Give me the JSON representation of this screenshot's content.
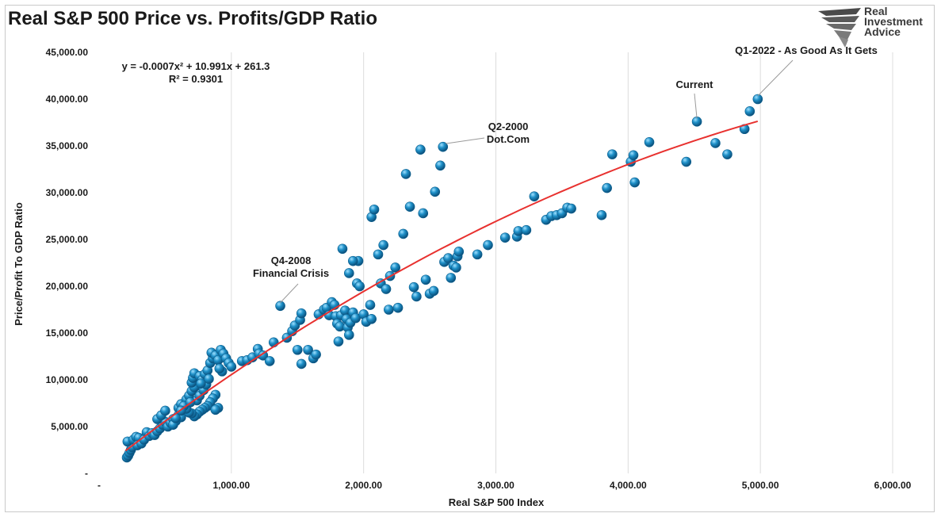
{
  "chart_data": {
    "type": "scatter",
    "title": "Real S&P 500 Price vs. Profits/GDP Ratio",
    "xlabel": "Real S&P 500 Index",
    "ylabel": "Price/Profit To GDP Ratio",
    "xlim": [
      0,
      6000
    ],
    "ylim": [
      0,
      45000
    ],
    "x_ticks": [
      "-",
      "1,000.00",
      "2,000.00",
      "3,000.00",
      "4,000.00",
      "5,000.00",
      "6,000.00"
    ],
    "y_ticks": [
      "-",
      "5,000.00",
      "10,000.00",
      "15,000.00",
      "20,000.00",
      "25,000.00",
      "30,000.00",
      "35,000.00",
      "40,000.00",
      "45,000.00"
    ],
    "grid": "vertical",
    "point_color": "#1e90c8",
    "trend_color": "#e8312f",
    "trendline": {
      "equation": "y = -0.0007x² + 10.991x + 261.3",
      "r2": "R² = 0.9301",
      "coefficients": [
        -0.0007,
        10.991,
        261.3
      ],
      "x_range": [
        200,
        4980
      ]
    },
    "annotations": [
      {
        "lines": [
          "Q4-2008",
          "Financial Crisis"
        ],
        "x": 1370,
        "y": 17900
      },
      {
        "lines": [
          "Q2-2000",
          "Dot.Com"
        ],
        "x": 2620,
        "y": 34900
      },
      {
        "lines": [
          "Current"
        ],
        "x": 4520,
        "y": 37600
      },
      {
        "lines": [
          "Q1-2022 - As Good As It Gets"
        ],
        "x": 4980,
        "y": 40000
      }
    ],
    "points": [
      [
        210,
        1700
      ],
      [
        220,
        1900
      ],
      [
        230,
        2200
      ],
      [
        240,
        2500
      ],
      [
        250,
        2800
      ],
      [
        215,
        3400
      ],
      [
        260,
        3600
      ],
      [
        280,
        3900
      ],
      [
        300,
        3800
      ],
      [
        290,
        3000
      ],
      [
        320,
        3200
      ],
      [
        340,
        3600
      ],
      [
        360,
        4400
      ],
      [
        380,
        4000
      ],
      [
        400,
        4300
      ],
      [
        420,
        4100
      ],
      [
        440,
        4500
      ],
      [
        460,
        4800
      ],
      [
        480,
        5200
      ],
      [
        500,
        5500
      ],
      [
        440,
        5800
      ],
      [
        470,
        6200
      ],
      [
        500,
        6700
      ],
      [
        520,
        5000
      ],
      [
        540,
        5400
      ],
      [
        560,
        5800
      ],
      [
        580,
        5600
      ],
      [
        600,
        6200
      ],
      [
        620,
        6000
      ],
      [
        640,
        6800
      ],
      [
        600,
        7000
      ],
      [
        620,
        7400
      ],
      [
        660,
        7900
      ],
      [
        680,
        8300
      ],
      [
        700,
        8800
      ],
      [
        720,
        9200
      ],
      [
        700,
        9700
      ],
      [
        710,
        10200
      ],
      [
        720,
        10700
      ],
      [
        760,
        10400
      ],
      [
        780,
        10000
      ],
      [
        800,
        10600
      ],
      [
        820,
        11000
      ],
      [
        840,
        11800
      ],
      [
        860,
        12300
      ],
      [
        850,
        12900
      ],
      [
        880,
        12600
      ],
      [
        900,
        12100
      ],
      [
        920,
        13200
      ],
      [
        940,
        12800
      ],
      [
        960,
        12300
      ],
      [
        980,
        11800
      ],
      [
        1000,
        11400
      ],
      [
        930,
        10900
      ],
      [
        910,
        11200
      ],
      [
        880,
        8400
      ],
      [
        860,
        8000
      ],
      [
        840,
        7600
      ],
      [
        820,
        7200
      ],
      [
        800,
        7000
      ],
      [
        780,
        6800
      ],
      [
        760,
        6600
      ],
      [
        740,
        6300
      ],
      [
        720,
        6100
      ],
      [
        700,
        6400
      ],
      [
        680,
        6500
      ],
      [
        900,
        7000
      ],
      [
        880,
        6800
      ],
      [
        660,
        6900
      ],
      [
        640,
        7200
      ],
      [
        560,
        5200
      ],
      [
        580,
        5900
      ],
      [
        620,
        6700
      ],
      [
        740,
        7800
      ],
      [
        760,
        8300
      ],
      [
        790,
        8900
      ],
      [
        810,
        9500
      ],
      [
        830,
        10100
      ],
      [
        770,
        9600
      ],
      [
        690,
        7600
      ],
      [
        1080,
        12000
      ],
      [
        1120,
        12100
      ],
      [
        1160,
        12400
      ],
      [
        1200,
        13300
      ],
      [
        1210,
        12800
      ],
      [
        1240,
        12600
      ],
      [
        1290,
        12000
      ],
      [
        1320,
        14000
      ],
      [
        1370,
        17900
      ],
      [
        1420,
        14500
      ],
      [
        1460,
        15200
      ],
      [
        1480,
        15800
      ],
      [
        1520,
        16400
      ],
      [
        1530,
        17100
      ],
      [
        1500,
        13200
      ],
      [
        1530,
        11700
      ],
      [
        1580,
        13200
      ],
      [
        1620,
        12300
      ],
      [
        1640,
        12700
      ],
      [
        1660,
        17000
      ],
      [
        1700,
        17500
      ],
      [
        1720,
        17700
      ],
      [
        1740,
        16900
      ],
      [
        1760,
        18300
      ],
      [
        1780,
        18000
      ],
      [
        1790,
        16800
      ],
      [
        1800,
        16000
      ],
      [
        1820,
        15700
      ],
      [
        1810,
        14100
      ],
      [
        1830,
        16900
      ],
      [
        1860,
        17400
      ],
      [
        1870,
        16500
      ],
      [
        1880,
        15600
      ],
      [
        1890,
        14800
      ],
      [
        1900,
        16100
      ],
      [
        1920,
        17200
      ],
      [
        1940,
        16600
      ],
      [
        1950,
        20300
      ],
      [
        1960,
        22700
      ],
      [
        1970,
        20000
      ],
      [
        1840,
        24000
      ],
      [
        1890,
        21400
      ],
      [
        1920,
        22700
      ],
      [
        2000,
        17000
      ],
      [
        2020,
        16200
      ],
      [
        2050,
        18000
      ],
      [
        2060,
        16500
      ],
      [
        2060,
        27400
      ],
      [
        2080,
        28200
      ],
      [
        2110,
        23400
      ],
      [
        2130,
        20300
      ],
      [
        2150,
        24400
      ],
      [
        2170,
        19700
      ],
      [
        2190,
        17500
      ],
      [
        2200,
        21100
      ],
      [
        2240,
        22000
      ],
      [
        2260,
        17700
      ],
      [
        2300,
        25600
      ],
      [
        2320,
        32000
      ],
      [
        2350,
        28500
      ],
      [
        2380,
        19900
      ],
      [
        2400,
        18900
      ],
      [
        2430,
        34600
      ],
      [
        2450,
        27800
      ],
      [
        2470,
        20700
      ],
      [
        2500,
        19200
      ],
      [
        2530,
        19500
      ],
      [
        2540,
        30100
      ],
      [
        2580,
        32900
      ],
      [
        2600,
        34900
      ],
      [
        2610,
        22600
      ],
      [
        2640,
        23000
      ],
      [
        2660,
        20900
      ],
      [
        2680,
        22200
      ],
      [
        2700,
        22000
      ],
      [
        2710,
        23200
      ],
      [
        2720,
        23700
      ],
      [
        2860,
        23400
      ],
      [
        2940,
        24400
      ],
      [
        3070,
        25200
      ],
      [
        3160,
        25300
      ],
      [
        3170,
        25900
      ],
      [
        3230,
        26000
      ],
      [
        3290,
        29600
      ],
      [
        3380,
        27100
      ],
      [
        3420,
        27500
      ],
      [
        3460,
        27600
      ],
      [
        3500,
        27800
      ],
      [
        3540,
        28400
      ],
      [
        3570,
        28300
      ],
      [
        3800,
        27600
      ],
      [
        3840,
        30500
      ],
      [
        3880,
        34100
      ],
      [
        4020,
        33300
      ],
      [
        4040,
        34000
      ],
      [
        4050,
        31100
      ],
      [
        4160,
        35400
      ],
      [
        4440,
        33300
      ],
      [
        4520,
        37600
      ],
      [
        4660,
        35300
      ],
      [
        4750,
        34100
      ],
      [
        4880,
        36800
      ],
      [
        4920,
        38700
      ],
      [
        4980,
        40000
      ]
    ]
  },
  "logo": {
    "line1": "Real",
    "line2": "Investment",
    "line3": "Advice"
  }
}
